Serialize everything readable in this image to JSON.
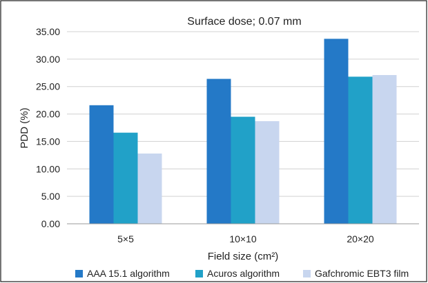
{
  "chart_data": {
    "type": "bar",
    "title": "Surface dose; 0.07 mm",
    "xlabel": "Field size (cm²)",
    "ylabel": "PDD (%)",
    "categories": [
      "5×5",
      "10×10",
      "20×20"
    ],
    "ylim": [
      0,
      35
    ],
    "yticks": [
      "0.00",
      "5.00",
      "10.00",
      "15.00",
      "20.00",
      "25.00",
      "30.00",
      "35.00"
    ],
    "grid": true,
    "legend_position": "bottom",
    "series": [
      {
        "name": "AAA 15.1 algorithm",
        "color": "#2479c7",
        "values": [
          21.6,
          26.4,
          33.7
        ]
      },
      {
        "name": "Acuros algorithm",
        "color": "#21a1c8",
        "values": [
          16.6,
          19.5,
          26.8
        ]
      },
      {
        "name": "Gafchromic EBT3 film",
        "color": "#c8d6ef",
        "values": [
          12.8,
          18.7,
          27.1
        ]
      }
    ]
  }
}
